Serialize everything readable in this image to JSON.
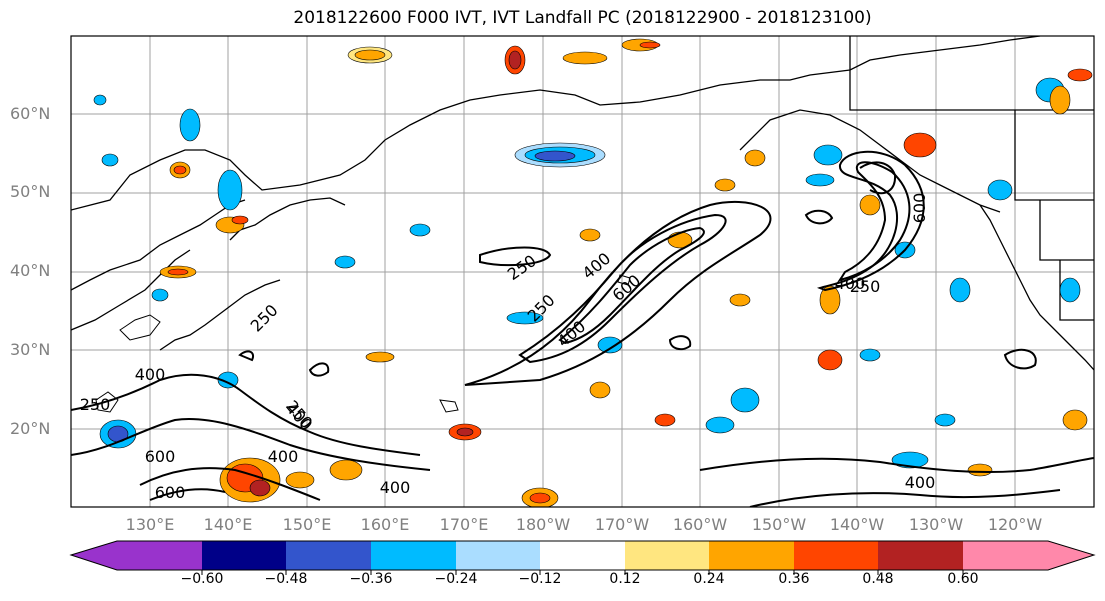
{
  "title": "2018122600 F000 IVT, IVT Landfall PC (2018122900 - 2018123100)",
  "map": {
    "lat_labels": [
      "60°N",
      "50°N",
      "40°N",
      "30°N",
      "20°N"
    ],
    "lon_labels": [
      "130°E",
      "140°E",
      "150°E",
      "160°E",
      "170°E",
      "180°W",
      "170°W",
      "160°W",
      "150°W",
      "140°W",
      "130°W",
      "120°W"
    ],
    "contour_labels": [
      "250",
      "400",
      "600",
      "250",
      "400",
      "250",
      "400",
      "250",
      "400",
      "400",
      "600",
      "250",
      "400",
      "600",
      "250",
      "400",
      "400",
      "600"
    ],
    "grid": true
  },
  "colorbar": {
    "colors": [
      "#9933cc",
      "#000088",
      "#3355cc",
      "#00bbff",
      "#aaddff",
      "#ffffff",
      "#ffe680",
      "#ffa500",
      "#ff4500",
      "#b22222",
      "#ff88aa"
    ],
    "ticks": [
      "−0.60",
      "−0.48",
      "−0.36",
      "−0.24",
      "−0.12",
      "0.12",
      "0.24",
      "0.36",
      "0.48",
      "0.60"
    ]
  }
}
